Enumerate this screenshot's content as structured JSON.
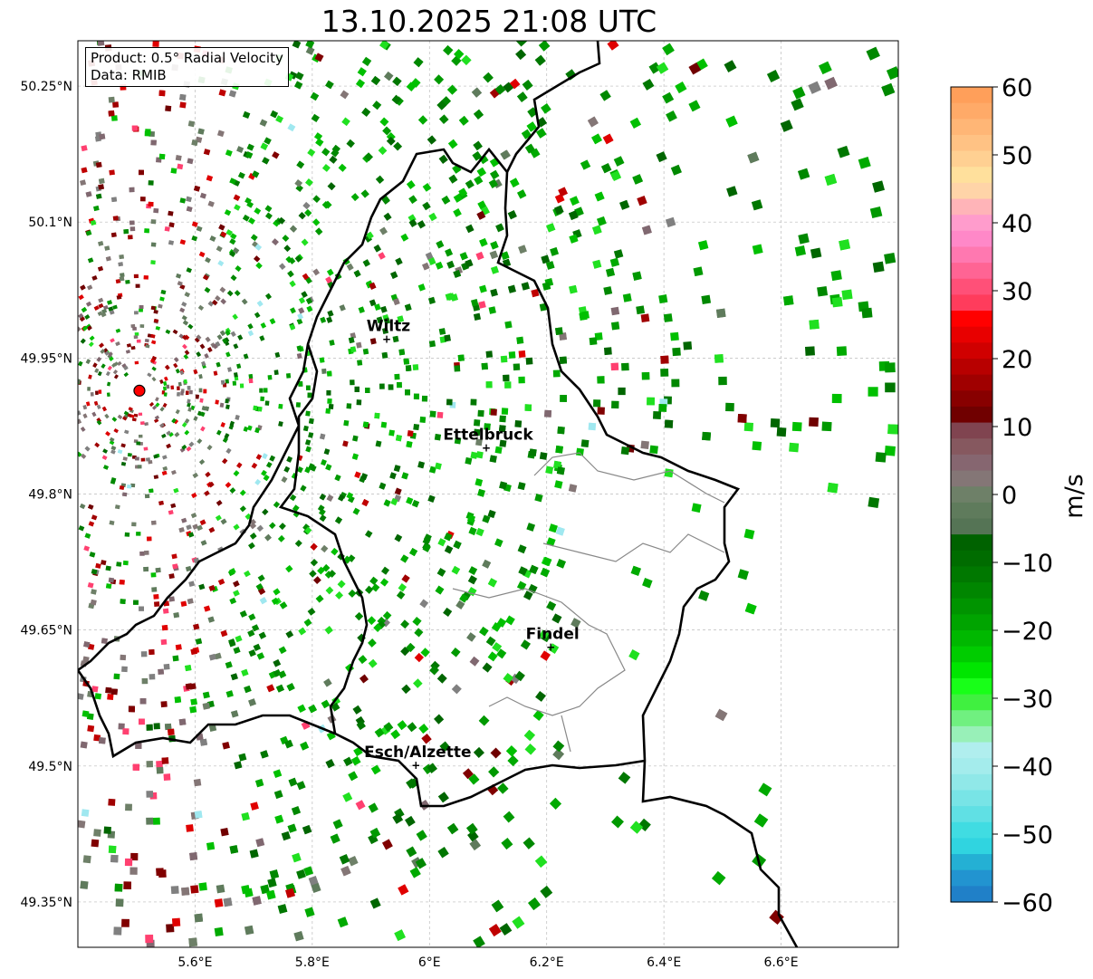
{
  "title": "13.10.2025 21:08 UTC",
  "legend": {
    "product": "Product: 0.5° Radial Velocity",
    "data": "Data: RMIB"
  },
  "lat_ticks": [
    {
      "value": 50.25,
      "label": "50.25°N"
    },
    {
      "value": 50.1,
      "label": "50.1°N"
    },
    {
      "value": 49.95,
      "label": "49.95°N"
    },
    {
      "value": 49.8,
      "label": "49.8°N"
    },
    {
      "value": 49.65,
      "label": "49.65°N"
    },
    {
      "value": 49.5,
      "label": "49.5°N"
    },
    {
      "value": 49.35,
      "label": "49.35°N"
    }
  ],
  "lon_ticks": [
    {
      "value": 5.6,
      "label": "5.6°E"
    },
    {
      "value": 5.8,
      "label": "5.8°E"
    },
    {
      "value": 6.0,
      "label": "6°E"
    },
    {
      "value": 6.2,
      "label": "6.2°E"
    },
    {
      "value": 6.4,
      "label": "6.4°E"
    },
    {
      "value": 6.6,
      "label": "6.6°E"
    }
  ],
  "extent": {
    "lon": [
      5.4,
      6.8
    ],
    "lat": [
      49.3,
      50.3
    ]
  },
  "radar_site": {
    "lon": 5.505,
    "lat": 49.914
  },
  "cities": [
    {
      "name": "Wiltz",
      "lon": 5.93,
      "lat": 49.97
    },
    {
      "name": "Ettelbruck",
      "lon": 6.1,
      "lat": 49.85
    },
    {
      "name": "Findel",
      "lon": 6.21,
      "lat": 49.63
    },
    {
      "name": "Esch/Alzette",
      "lon": 5.98,
      "lat": 49.5
    }
  ],
  "colorbar": {
    "label": "m/s",
    "range": [
      -60,
      60
    ],
    "ticks": [
      "60",
      "50",
      "40",
      "30",
      "20",
      "10",
      "0",
      "−10",
      "−20",
      "−30",
      "−40",
      "−50",
      "−60"
    ],
    "colors_top_to_bottom": [
      "#ff9f5a",
      "#ffaa68",
      "#ffb676",
      "#ffc284",
      "#ffd092",
      "#ffe09c",
      "#ffd4a8",
      "#ffb4b8",
      "#ff9ccc",
      "#ff88c8",
      "#ff78b0",
      "#ff6494",
      "#ff5078",
      "#ff3c5c",
      "#ff0000",
      "#e80000",
      "#d00000",
      "#b80000",
      "#a00000",
      "#880000",
      "#700000",
      "#804450",
      "#86585f",
      "#866670",
      "#847676",
      "#6e8068",
      "#5f7b5c",
      "#557455",
      "#006200",
      "#006c00",
      "#007800",
      "#008600",
      "#009400",
      "#00a400",
      "#00b800",
      "#00cc00",
      "#00e600",
      "#18ff18",
      "#40f040",
      "#70f080",
      "#98f0b8",
      "#b0eeee",
      "#a4ecec",
      "#90e8e8",
      "#78e4e6",
      "#60e0e4",
      "#40dce2",
      "#30d4e0",
      "#24b0d4",
      "#2294d0",
      "#2080c8"
    ]
  }
}
